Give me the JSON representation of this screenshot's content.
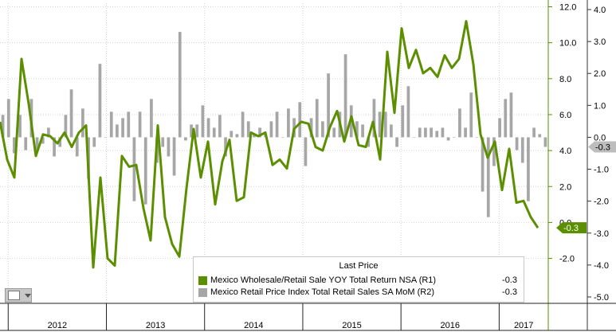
{
  "chart_data": {
    "type": "line",
    "x_range": [
      "2011-12",
      "2017-07"
    ],
    "year_labels": [
      "2012",
      "2013",
      "2014",
      "2015",
      "2016",
      "2017"
    ],
    "grid": true,
    "legend_position": "bottom-center",
    "legend_title": "Last Price",
    "left_axis_ticks": [
      "12.0",
      "10.0",
      "8.0",
      "6.0",
      "4.0",
      "2.0",
      "0.0",
      "-2.0"
    ],
    "right_axis_ticks": [
      "4.0",
      "3.0",
      "2.0",
      "1.0",
      "0.0",
      "-1.0",
      "-2.0",
      "-3.0",
      "-4.0",
      "-5.0"
    ],
    "ylim_r1": [
      -4.5,
      12.2
    ],
    "ylim_r2": [
      -5.2,
      4.2
    ],
    "series": [
      {
        "name": "Mexico Wholesale/Retail Sale YOY Total Return NSA",
        "axis": "R1",
        "axis_label": "(R1)",
        "last_value": "-0.3",
        "last_value_tag": "-0.3",
        "color": "#5b8f00",
        "type": "line",
        "values": [
          5.6,
          3.5,
          2.5,
          9.1,
          6.6,
          3.7,
          4.9,
          4.8,
          4.4,
          5.0,
          4.2,
          5.0,
          5.4,
          -2.5,
          2.5,
          -2.0,
          -2.4,
          3.7,
          3.1,
          3.2,
          0.8,
          -1.0,
          5.4,
          0.3,
          -1.2,
          -1.9,
          1.9,
          5.2,
          2.5,
          4.5,
          1.0,
          3.4,
          4.6,
          1.2,
          1.4,
          5.0,
          4.8,
          5.0,
          3.2,
          3.5,
          3.0,
          5.2,
          5.6,
          5.5,
          4.2,
          4.0,
          5.3,
          6.2,
          4.5,
          5.9,
          4.3,
          4.2,
          5.6,
          3.5,
          9.5,
          6.1,
          10.8,
          8.6,
          9.6,
          8.3,
          8.6,
          8.1,
          9.3,
          8.6,
          9.1,
          11.2,
          8.8,
          4.9,
          3.6,
          4.5,
          1.8,
          4.1,
          1.1,
          1.2,
          0.3,
          -0.3
        ]
      },
      {
        "name": "Mexico Retail Price Index Total Retail Sales SA MoM",
        "axis": "R2",
        "axis_label": "(R2)",
        "last_value": "-0.3",
        "last_value_tag": "-0.3",
        "color": "#a6a6a6",
        "type": "bar",
        "values": [
          0.7,
          1.2,
          -0.5,
          0.7,
          -0.4,
          1.2,
          -0.4,
          -0.2,
          0.3,
          -0.6,
          -0.3,
          0.7,
          1.5,
          -0.6,
          0.9,
          -1.3,
          -0.3,
          2.3,
          0.0,
          0.8,
          0.4,
          0.6,
          0.8,
          -2.0,
          0.8,
          -2.1,
          1.2,
          -0.8,
          -0.3,
          -0.6,
          -1.2,
          3.3,
          -0.1,
          0.4,
          0.4,
          1.0,
          0.6,
          0.3,
          0.7,
          -0.6,
          0.2,
          0.1,
          0.8,
          0.5,
          0.1,
          0.3,
          0.1,
          0.5,
          0.8,
          0.0,
          0.9,
          0.6,
          1.1,
          -0.9,
          0.6,
          1.2,
          0.5,
          2.0,
          0.3,
          0.8,
          2.6,
          1.0,
          0.5,
          0.4,
          -0.3,
          1.2,
          0.8,
          0.8,
          0.4,
          -0.3,
          1.0,
          1.6,
          0.0,
          0.3,
          0.3,
          0.3,
          0.2,
          0.3,
          -0.1,
          0.0,
          0.9,
          0.3,
          1.4,
          0.0,
          -1.7,
          -2.5,
          -0.9,
          0.6,
          1.2,
          1.4,
          -0.4,
          -0.8,
          -2.0,
          0.3,
          0.1,
          -0.3
        ]
      }
    ]
  }
}
